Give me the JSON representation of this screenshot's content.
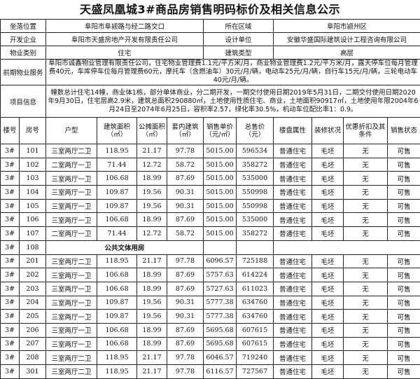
{
  "title": "天盛凤凰城3#商品房销售明码标价及相关信息公示",
  "info": {
    "location_label": "坐落位置",
    "location": "阜阳市阜颍路与经二路交口",
    "district_label": "所在区域",
    "district": "阜阳市颍州区",
    "developer_label": "开发企业",
    "developer": "阜阳市天盛房地产开发有限责任公司",
    "designer_label": "设计单位",
    "designer": "安徽华盛国际建筑设计工程咨询有限公司",
    "property_type_label": "物业类别",
    "property_type": "住宅",
    "building_type_label": "建筑类型",
    "building_type": "高层",
    "service_label": "前期物业服务",
    "service": "阜阳市诚鑫物业管理有限责任公司，住宅物业管理费1.1元/平方米/月，商业物业管理费1.2元/平方米/月，露天停车位每月管理费40元，车库停车位每月管理费60元，摩托车（含燃油车）30元/月/辆，电动车25元/月/辆，自行车15元/月/辆，三轮电动车40元/月/辆。",
    "project_label": "项目信息",
    "project": "幢数总计住宅14幢，商业体1栋，部分单体商业，分二期开发，一期交付使用日期2019年5月31日，二期交付使用日期2020年9月30日，住宅层高2.9米，建筑总面积290880㎡，土地使用性质住宅、商业，土地面积90917㎡，土地使用年限2004年6月24日至2074年6月25日，容积率2.57，绿化率30.5%，机动车位配比率1：0.9。"
  },
  "columns": [
    "楼号",
    "房号",
    "户型",
    "建筑面积（㎡）",
    "公摊面积（㎡）",
    "套内建筑（㎡）",
    "销售单价（元/㎡）",
    "总售价（元）",
    "楼盘属性",
    "装修状况",
    "优惠折扣及其条件",
    "销售状态"
  ],
  "rows": [
    [
      "3#",
      "101",
      "三室两厅二卫",
      "118.95",
      "21.17",
      "97.78",
      "5015.00",
      "596534",
      "普通住宅",
      "毛坯",
      "无",
      "可售"
    ],
    [
      "3#",
      "102",
      "二室两厅一卫",
      "71.44",
      "12.72",
      "58.72",
      "5015.00",
      "358272",
      "普通住宅",
      "毛坯",
      "无",
      "可售"
    ],
    [
      "3#",
      "103",
      "三室两厅一卫",
      "106.68",
      "18.99",
      "87.69",
      "5015.00",
      "535000",
      "普通住宅",
      "毛坯",
      "无",
      "可售"
    ],
    [
      "3#",
      "104",
      "三室两厅一卫",
      "109.87",
      "19.56",
      "90.31",
      "5015.00",
      "550998",
      "普通住宅",
      "毛坯",
      "无",
      "可售"
    ],
    [
      "3#",
      "105",
      "三室两厅一卫",
      "109.87",
      "19.56",
      "90.31",
      "5015.00",
      "550998",
      "普通住宅",
      "毛坯",
      "无",
      "可售"
    ],
    [
      "3#",
      "106",
      "三室两厅一卫",
      "106.68",
      "18.99",
      "87.69",
      "5015.00",
      "535000",
      "普通住宅",
      "毛坯",
      "无",
      "可售"
    ],
    [
      "3#",
      "107",
      "二室两厅一卫",
      "71.44",
      "12.72",
      "58.72",
      "5015.00",
      "358272",
      "普通住宅",
      "毛坯",
      "无",
      "可售"
    ],
    [
      "3#",
      "108",
      "公共文体用房"
    ],
    [
      "3#",
      "201",
      "三室两厅二卫",
      "118.95",
      "21.17",
      "97.78",
      "6096.57",
      "725188",
      "普通住宅",
      "毛坯",
      "无",
      "可售"
    ],
    [
      "3#",
      "202",
      "三室两厅一卫",
      "106.68",
      "18.99",
      "87.69",
      "5757.63",
      "614224",
      "普通住宅",
      "毛坯",
      "无",
      "可售"
    ],
    [
      "3#",
      "203",
      "三室两厅一卫",
      "106.68",
      "18.99",
      "87.69",
      "5727.63",
      "611023",
      "普通住宅",
      "毛坯",
      "无",
      "可售"
    ],
    [
      "3#",
      "204",
      "三室两厅一卫",
      "109.87",
      "19.56",
      "90.31",
      "5777.38",
      "634760",
      "普通住宅",
      "毛坯",
      "无",
      "可售"
    ],
    [
      "3#",
      "205",
      "三室两厅一卫",
      "109.87",
      "19.56",
      "90.31",
      "5777.38",
      "634760",
      "普通住宅",
      "毛坯",
      "无",
      "可售"
    ],
    [
      "3#",
      "206",
      "三室两厅一卫",
      "106.68",
      "18.99",
      "87.69",
      "5695.68",
      "607615",
      "普通住宅",
      "毛坯",
      "无",
      "可售"
    ],
    [
      "3#",
      "207",
      "三室两厅一卫",
      "106.68",
      "18.99",
      "87.69",
      "5695.68",
      "607615",
      "普通住宅",
      "毛坯",
      "无",
      "可售"
    ],
    [
      "3#",
      "208",
      "三室两厅二卫",
      "118.95",
      "21.17",
      "97.78",
      "6046.57",
      "719240",
      "普通住宅",
      "毛坯",
      "无",
      "可售"
    ],
    [
      "3#",
      "301",
      "三室两厅二卫",
      "118.95",
      "21.17",
      "97.78",
      "6116.57",
      "727567",
      "普通住宅",
      "毛坯",
      "无",
      "可售"
    ]
  ]
}
